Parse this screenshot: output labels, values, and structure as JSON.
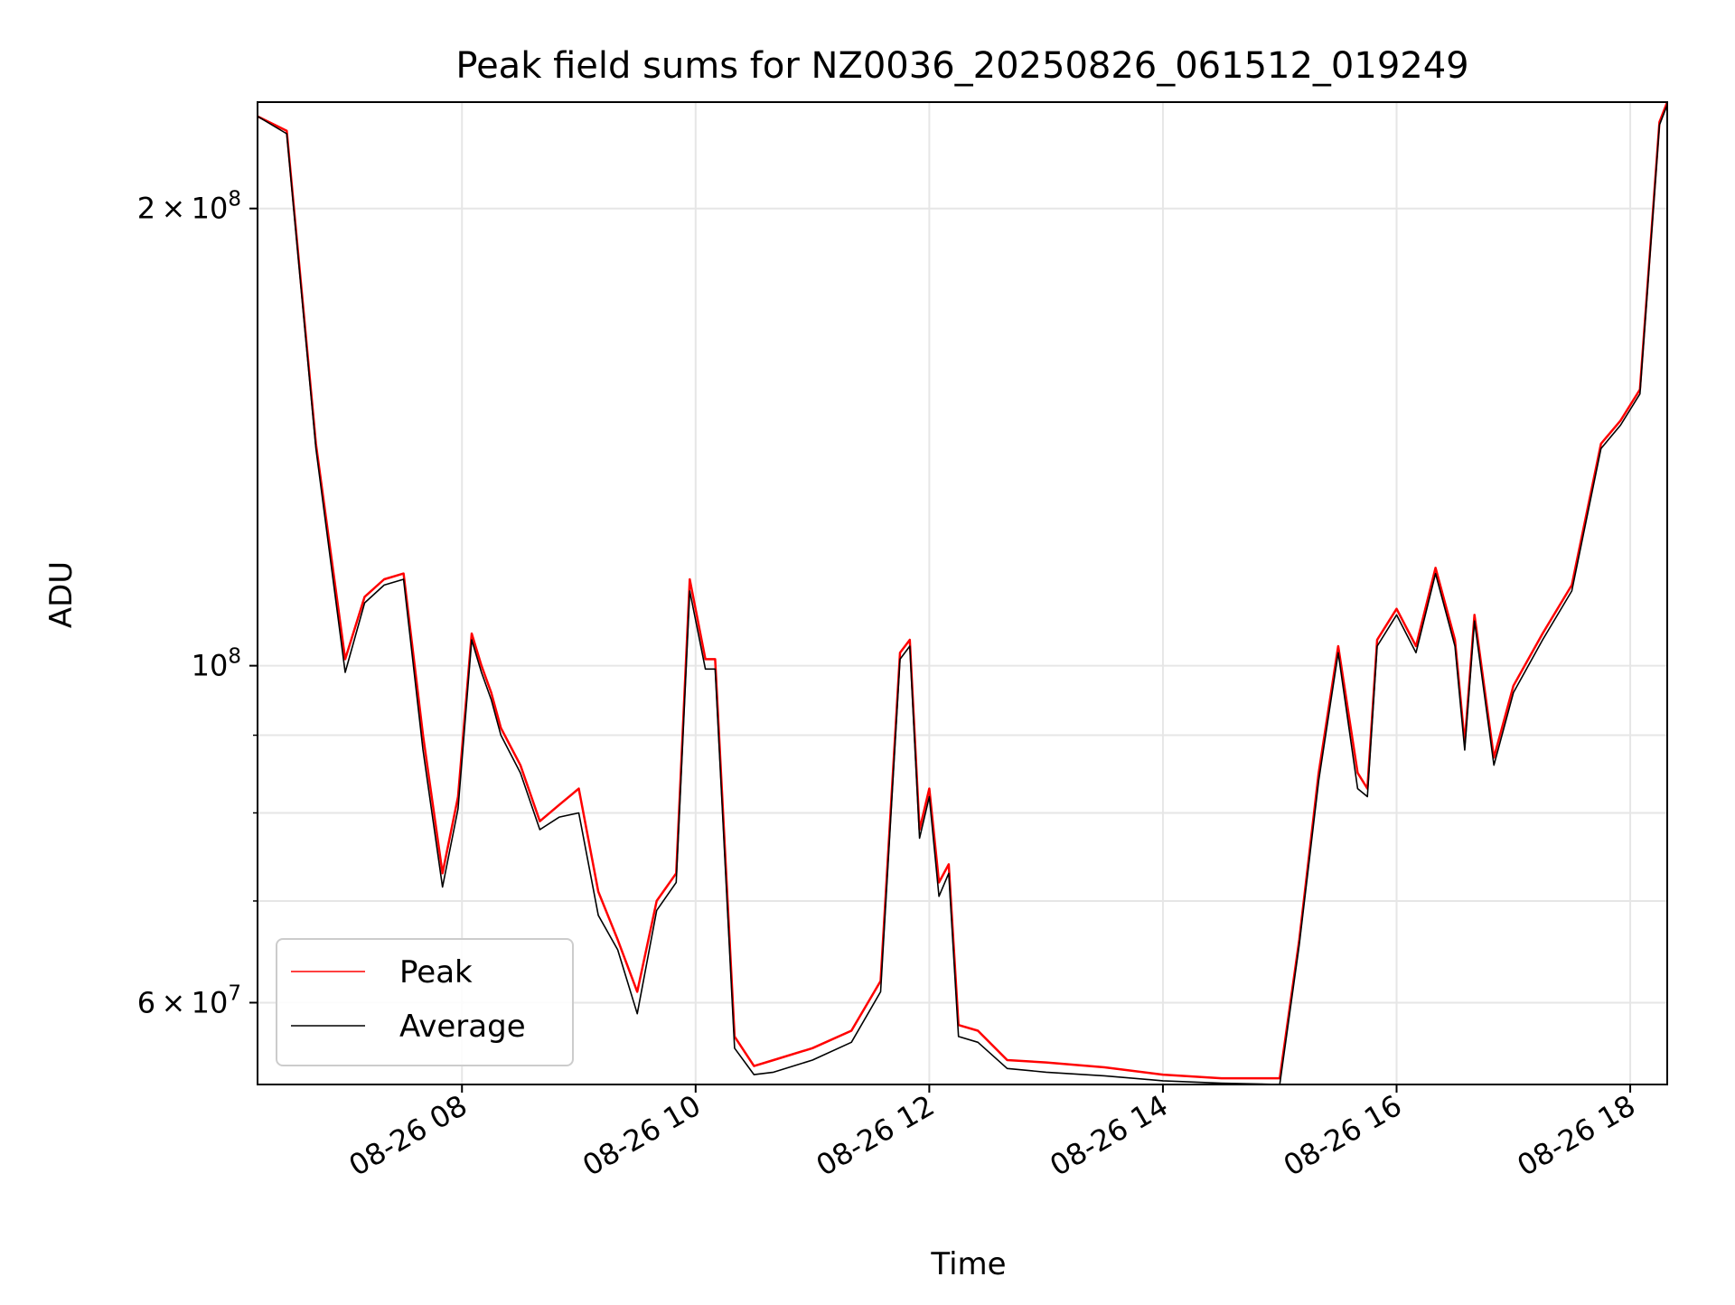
{
  "chart_data": {
    "type": "line",
    "title": "Peak field sums for NZ0036_20250826_061512_019249",
    "xlabel": "Time",
    "ylabel": "ADU",
    "yscale": "log",
    "ylim": [
      53000000,
      235000000
    ],
    "xlim": [
      "2025-08-26 06:15",
      "2025-08-26 18:19"
    ],
    "grid": true,
    "legend": {
      "position": "lower-left",
      "entries": [
        "Peak",
        "Average"
      ]
    },
    "x_ticks": [
      {
        "value": "2025-08-26 08:00",
        "label": "08-26 08"
      },
      {
        "value": "2025-08-26 10:00",
        "label": "08-26 10"
      },
      {
        "value": "2025-08-26 12:00",
        "label": "08-26 12"
      },
      {
        "value": "2025-08-26 14:00",
        "label": "08-26 14"
      },
      {
        "value": "2025-08-26 16:00",
        "label": "08-26 16"
      },
      {
        "value": "2025-08-26 18:00",
        "label": "08-26 18"
      }
    ],
    "y_ticks": [
      {
        "value": 200000000,
        "base": "2",
        "times": "×",
        "exp": "8",
        "label": "2 × 10^8"
      },
      {
        "value": 100000000,
        "base": "",
        "times": "",
        "exp": "8",
        "label": "10^8"
      },
      {
        "value": 60000000,
        "base": "6",
        "times": "×",
        "exp": "7",
        "label": "6 × 10^7"
      }
    ],
    "y_minor_ticks": [
      70000000,
      80000000,
      90000000
    ],
    "series": [
      {
        "name": "Peak",
        "color": "#ff0000",
        "x": [
          "2025-08-26 06:15",
          "2025-08-26 06:30",
          "2025-08-26 06:45",
          "2025-08-26 07:00",
          "2025-08-26 07:10",
          "2025-08-26 07:20",
          "2025-08-26 07:30",
          "2025-08-26 07:40",
          "2025-08-26 07:50",
          "2025-08-26 07:58",
          "2025-08-26 08:05",
          "2025-08-26 08:10",
          "2025-08-26 08:15",
          "2025-08-26 08:20",
          "2025-08-26 08:30",
          "2025-08-26 08:40",
          "2025-08-26 08:50",
          "2025-08-26 09:00",
          "2025-08-26 09:10",
          "2025-08-26 09:20",
          "2025-08-26 09:30",
          "2025-08-26 09:40",
          "2025-08-26 09:50",
          "2025-08-26 09:57",
          "2025-08-26 10:05",
          "2025-08-26 10:10",
          "2025-08-26 10:20",
          "2025-08-26 10:30",
          "2025-08-26 10:40",
          "2025-08-26 11:00",
          "2025-08-26 11:20",
          "2025-08-26 11:35",
          "2025-08-26 11:45",
          "2025-08-26 11:50",
          "2025-08-26 11:55",
          "2025-08-26 12:00",
          "2025-08-26 12:05",
          "2025-08-26 12:10",
          "2025-08-26 12:15",
          "2025-08-26 12:25",
          "2025-08-26 12:40",
          "2025-08-26 13:00",
          "2025-08-26 13:30",
          "2025-08-26 14:00",
          "2025-08-26 14:30",
          "2025-08-26 15:00",
          "2025-08-26 15:10",
          "2025-08-26 15:20",
          "2025-08-26 15:30",
          "2025-08-26 15:40",
          "2025-08-26 15:45",
          "2025-08-26 15:50",
          "2025-08-26 16:00",
          "2025-08-26 16:10",
          "2025-08-26 16:20",
          "2025-08-26 16:30",
          "2025-08-26 16:35",
          "2025-08-26 16:40",
          "2025-08-26 16:50",
          "2025-08-26 17:00",
          "2025-08-26 17:15",
          "2025-08-26 17:30",
          "2025-08-26 17:45",
          "2025-08-26 17:55",
          "2025-08-26 18:05",
          "2025-08-26 18:15",
          "2025-08-26 18:19"
        ],
        "values": [
          230000000,
          225000000,
          140000000,
          101000000,
          111000000,
          114000000,
          115000000,
          90000000,
          73000000,
          82000000,
          105000000,
          100000000,
          96000000,
          91000000,
          86000000,
          79000000,
          81000000,
          83000000,
          71000000,
          66000000,
          61000000,
          70000000,
          73000000,
          114000000,
          101000000,
          101000000,
          57000000,
          54500000,
          55000000,
          56000000,
          57500000,
          62000000,
          102000000,
          104000000,
          78000000,
          83000000,
          72000000,
          74000000,
          58000000,
          57500000,
          55000000,
          54800000,
          54400000,
          53800000,
          53500000,
          53500000,
          66000000,
          85000000,
          103000000,
          85000000,
          83000000,
          104000000,
          109000000,
          103000000,
          116000000,
          104000000,
          89000000,
          108000000,
          87000000,
          97000000,
          105000000,
          113000000,
          140000000,
          145000000,
          152000000,
          228000000,
          235000000
        ]
      },
      {
        "name": "Average",
        "color": "#000000",
        "x": [
          "2025-08-26 06:15",
          "2025-08-26 06:30",
          "2025-08-26 06:45",
          "2025-08-26 07:00",
          "2025-08-26 07:10",
          "2025-08-26 07:20",
          "2025-08-26 07:30",
          "2025-08-26 07:40",
          "2025-08-26 07:50",
          "2025-08-26 07:58",
          "2025-08-26 08:05",
          "2025-08-26 08:10",
          "2025-08-26 08:15",
          "2025-08-26 08:20",
          "2025-08-26 08:30",
          "2025-08-26 08:40",
          "2025-08-26 08:50",
          "2025-08-26 09:00",
          "2025-08-26 09:10",
          "2025-08-26 09:20",
          "2025-08-26 09:30",
          "2025-08-26 09:40",
          "2025-08-26 09:50",
          "2025-08-26 09:57",
          "2025-08-26 10:05",
          "2025-08-26 10:10",
          "2025-08-26 10:20",
          "2025-08-26 10:30",
          "2025-08-26 10:40",
          "2025-08-26 11:00",
          "2025-08-26 11:20",
          "2025-08-26 11:35",
          "2025-08-26 11:45",
          "2025-08-26 11:50",
          "2025-08-26 11:55",
          "2025-08-26 12:00",
          "2025-08-26 12:05",
          "2025-08-26 12:10",
          "2025-08-26 12:15",
          "2025-08-26 12:25",
          "2025-08-26 12:40",
          "2025-08-26 13:00",
          "2025-08-26 13:30",
          "2025-08-26 14:00",
          "2025-08-26 14:30",
          "2025-08-26 15:00",
          "2025-08-26 15:10",
          "2025-08-26 15:20",
          "2025-08-26 15:30",
          "2025-08-26 15:40",
          "2025-08-26 15:45",
          "2025-08-26 15:50",
          "2025-08-26 16:00",
          "2025-08-26 16:10",
          "2025-08-26 16:20",
          "2025-08-26 16:30",
          "2025-08-26 16:35",
          "2025-08-26 16:40",
          "2025-08-26 16:50",
          "2025-08-26 17:00",
          "2025-08-26 17:15",
          "2025-08-26 17:30",
          "2025-08-26 17:45",
          "2025-08-26 17:55",
          "2025-08-26 18:05",
          "2025-08-26 18:15",
          "2025-08-26 18:19"
        ],
        "values": [
          230000000,
          224000000,
          139000000,
          99000000,
          110000000,
          113000000,
          114000000,
          88000000,
          71500000,
          80500000,
          104000000,
          99000000,
          95000000,
          90000000,
          85000000,
          78000000,
          79500000,
          80000000,
          68500000,
          65000000,
          59000000,
          69000000,
          72000000,
          112000000,
          99500000,
          99500000,
          56000000,
          53800000,
          54000000,
          55000000,
          56500000,
          61000000,
          101000000,
          103000000,
          77000000,
          82000000,
          70500000,
          73000000,
          57000000,
          56500000,
          54300000,
          54000000,
          53700000,
          53300000,
          53100000,
          53000000,
          65500000,
          84000000,
          102000000,
          83000000,
          82000000,
          103000000,
          108000000,
          102000000,
          115000000,
          103000000,
          88000000,
          107000000,
          86000000,
          96000000,
          104000000,
          112000000,
          139000000,
          144000000,
          151000000,
          227000000,
          234000000
        ]
      }
    ]
  }
}
